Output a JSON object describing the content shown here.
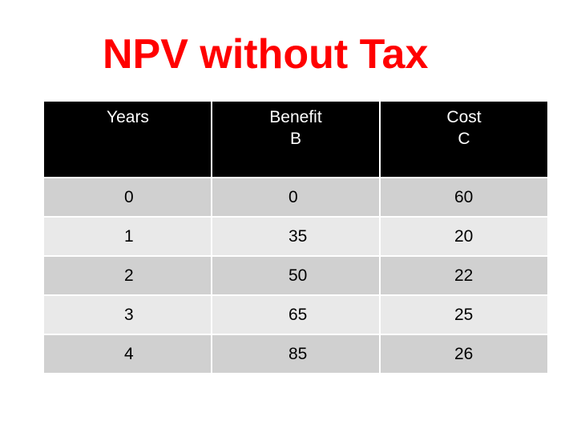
{
  "title": "NPV without Tax",
  "colors": {
    "title": "#ff0000",
    "header_bg": "#000000",
    "row_dark": "#d0d0d0",
    "row_light": "#e9e9e9"
  },
  "table": {
    "headers": [
      {
        "line1": "Years",
        "line2": ""
      },
      {
        "line1": "Benefit",
        "line2": "B"
      },
      {
        "line1": "Cost",
        "line2": "C"
      }
    ],
    "rows": [
      [
        "0",
        "0",
        "60"
      ],
      [
        "1",
        "35",
        "20"
      ],
      [
        "2",
        "50",
        "22"
      ],
      [
        "3",
        "65",
        "25"
      ],
      [
        "4",
        "85",
        "26"
      ]
    ]
  }
}
